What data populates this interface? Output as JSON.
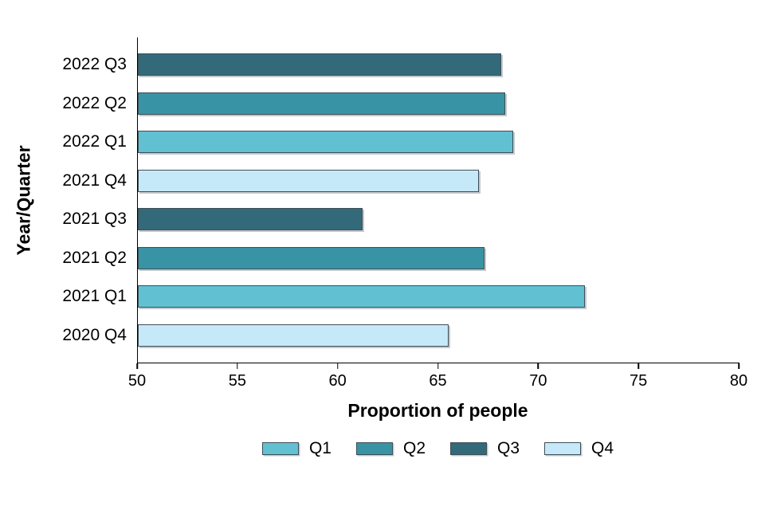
{
  "chart_data": {
    "type": "bar",
    "orientation": "horizontal",
    "title": "",
    "xlabel": "Proportion of people",
    "ylabel": "Year/Quarter",
    "xlim": [
      50,
      80
    ],
    "xticks": [
      50,
      55,
      60,
      65,
      70,
      75,
      80
    ],
    "grid": false,
    "categories": [
      "2022 Q3",
      "2022 Q2",
      "2022 Q1",
      "2021 Q4",
      "2021 Q3",
      "2021 Q2",
      "2021 Q1",
      "2020 Q4"
    ],
    "values": [
      68.1,
      68.3,
      68.7,
      67.0,
      61.2,
      67.3,
      72.3,
      65.5
    ],
    "bar_quarters": [
      "Q3",
      "Q2",
      "Q1",
      "Q4",
      "Q3",
      "Q2",
      "Q1",
      "Q4"
    ],
    "bar_border_color": "#3E4E57",
    "legend": {
      "position": "bottom",
      "entries": [
        {
          "label": "Q1",
          "color": "#61C1D2"
        },
        {
          "label": "Q2",
          "color": "#3894A4"
        },
        {
          "label": "Q3",
          "color": "#336A7A"
        },
        {
          "label": "Q4",
          "color": "#C6E9FA"
        }
      ]
    }
  }
}
